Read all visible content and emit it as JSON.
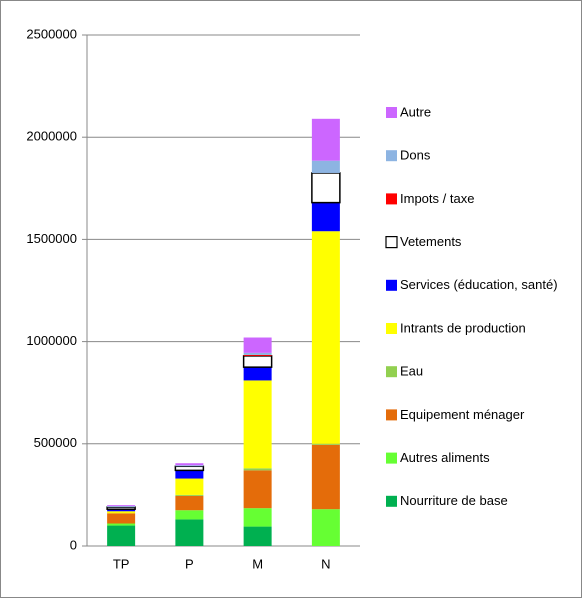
{
  "chart_data": {
    "type": "stacked-bar",
    "categories": [
      "TP",
      "P",
      "M",
      "N"
    ],
    "series": [
      {
        "name": "Nourriture de base",
        "color": "#00b050",
        "values": [
          100000,
          130000,
          95000,
          0
        ]
      },
      {
        "name": "Autres aliments",
        "color": "#66ff33",
        "values": [
          10000,
          45000,
          90000,
          180000
        ]
      },
      {
        "name": "Equipement ménager",
        "color": "#e46c0a",
        "values": [
          50000,
          70000,
          185000,
          315000
        ]
      },
      {
        "name": "Eau",
        "color": "#92d050",
        "values": [
          0,
          5000,
          10000,
          5000
        ]
      },
      {
        "name": "Intrants de production",
        "color": "#ffff00",
        "values": [
          10000,
          80000,
          430000,
          1040000
        ]
      },
      {
        "name": "Services (éducation, santé)",
        "color": "#0000ff",
        "values": [
          10000,
          40000,
          65000,
          140000
        ]
      },
      {
        "name": "Vetements",
        "color": "#ffffff",
        "values": [
          10000,
          20000,
          55000,
          145000
        ]
      },
      {
        "name": "Impots / taxe",
        "color": "#ff0000",
        "values": [
          0,
          0,
          5000,
          0
        ]
      },
      {
        "name": "Dons",
        "color": "#8db4e2",
        "values": [
          5000,
          5000,
          10000,
          60000
        ]
      },
      {
        "name": "Autre",
        "color": "#cc66ff",
        "values": [
          5000,
          10000,
          75000,
          205000
        ]
      }
    ],
    "ylim": [
      0,
      2500000
    ],
    "yticks": [
      0,
      500000,
      1000000,
      1500000,
      2000000,
      2500000
    ],
    "grid": true
  }
}
